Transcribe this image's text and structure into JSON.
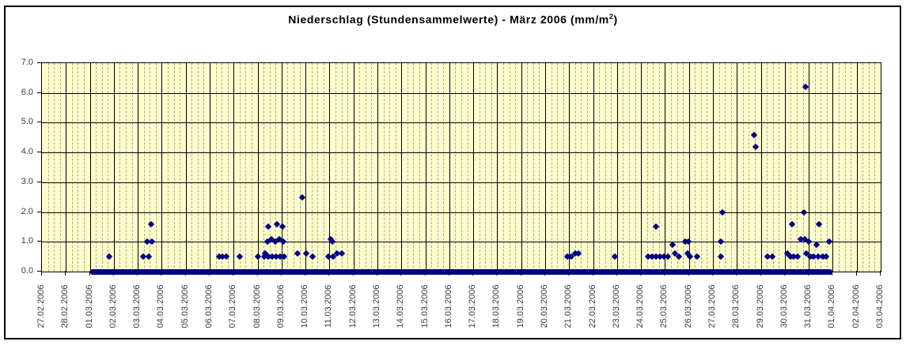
{
  "title": {
    "main": "Niederschlag (Stundensammelwerte) - März 2006 (mm/m",
    "sup": "2",
    "close": ")"
  },
  "colors": {
    "plot_background": "#FFFFCC",
    "marker": "#000080",
    "zero_baseline": "#000080",
    "major_gridline": "#000000",
    "minor_gridline": "#A6A6A6",
    "axis_text": "#3D3D3D",
    "frame": "#000000"
  },
  "chart_data": {
    "type": "scatter",
    "title": "Niederschlag (Stundensammelwerte) - März 2006 (mm/m²)",
    "xlabel": "",
    "ylabel": "",
    "legend": "none",
    "grid": "major solid lines per day and per 1.0 mm; minor dashed vertical lines every 6 hours",
    "y_axis": {
      "min": 0,
      "max": 7,
      "tick_labels": [
        "0.0",
        "1.0",
        "2.0",
        "3.0",
        "4.0",
        "5.0",
        "6.0",
        "7.0"
      ]
    },
    "x_axis": {
      "days_span": 35,
      "minor_divisions_per_day": 4,
      "tick_labels": [
        "27.02.2006",
        "28.02.2006",
        "01.03.2006",
        "02.03.2006",
        "03.03.2006",
        "04.03.2006",
        "05.03.2006",
        "06.03.2006",
        "07.03.2006",
        "08.03.2006",
        "09.03.2006",
        "10.03.2006",
        "11.03.2006",
        "12.03.2006",
        "13.03.2006",
        "14.03.2006",
        "15.03.2006",
        "16.03.2006",
        "17.03.2006",
        "18.03.2006",
        "19.03.2006",
        "20.03.2006",
        "21.03.2006",
        "22.03.2006",
        "23.03.2006",
        "24.03.2006",
        "25.03.2006",
        "26.03.2006",
        "27.03.2006",
        "28.03.2006",
        "29.03.2006",
        "30.03.2006",
        "31.03.2006",
        "01.04.2006",
        "02.04.2006",
        "03.04.2006"
      ]
    },
    "series": [
      {
        "marker": "diamond",
        "color": "#000080",
        "x_unit": "days after 27.02.2006 00:00",
        "y_unit": "mm/m²",
        "points": [
          [
            2.81,
            0.5
          ],
          [
            4.23,
            0.5
          ],
          [
            4.4,
            1.0
          ],
          [
            4.46,
            0.5
          ],
          [
            4.57,
            1.6
          ],
          [
            4.6,
            1.0
          ],
          [
            7.39,
            0.5
          ],
          [
            7.53,
            0.5
          ],
          [
            7.68,
            0.5
          ],
          [
            8.25,
            0.5
          ],
          [
            9.02,
            0.5
          ],
          [
            9.28,
            0.5
          ],
          [
            9.32,
            0.6
          ],
          [
            9.41,
            1.0
          ],
          [
            9.45,
            1.5
          ],
          [
            9.45,
            0.5
          ],
          [
            9.57,
            1.1
          ],
          [
            9.61,
            0.5
          ],
          [
            9.74,
            1.0
          ],
          [
            9.78,
            0.5
          ],
          [
            9.81,
            1.6
          ],
          [
            9.9,
            1.1
          ],
          [
            9.94,
            0.5
          ],
          [
            10.04,
            1.5
          ],
          [
            10.06,
            1.0
          ],
          [
            10.11,
            0.5
          ],
          [
            10.67,
            0.6
          ],
          [
            10.86,
            2.5
          ],
          [
            11.03,
            0.6
          ],
          [
            11.3,
            0.5
          ],
          [
            11.94,
            0.5
          ],
          [
            12.06,
            1.1
          ],
          [
            12.12,
            1.0
          ],
          [
            12.15,
            0.5
          ],
          [
            12.32,
            0.6
          ],
          [
            12.52,
            0.6
          ],
          [
            21.92,
            0.5
          ],
          [
            22.09,
            0.5
          ],
          [
            22.25,
            0.6
          ],
          [
            22.39,
            0.6
          ],
          [
            23.9,
            0.5
          ],
          [
            25.28,
            0.5
          ],
          [
            25.45,
            0.5
          ],
          [
            25.61,
            0.5
          ],
          [
            25.63,
            1.5
          ],
          [
            25.78,
            0.5
          ],
          [
            25.94,
            0.5
          ],
          [
            26.11,
            0.5
          ],
          [
            26.32,
            0.9
          ],
          [
            26.41,
            0.6
          ],
          [
            26.58,
            0.5
          ],
          [
            26.84,
            1.0
          ],
          [
            26.94,
            0.6
          ],
          [
            26.97,
            1.0
          ],
          [
            27.04,
            0.5
          ],
          [
            27.33,
            0.5
          ],
          [
            28.32,
            0.5
          ],
          [
            28.32,
            1.0
          ],
          [
            28.38,
            2.0
          ],
          [
            29.73,
            4.6
          ],
          [
            29.79,
            4.2
          ],
          [
            30.27,
            0.5
          ],
          [
            30.47,
            0.5
          ],
          [
            31.1,
            0.6
          ],
          [
            31.23,
            0.5
          ],
          [
            31.3,
            1.6
          ],
          [
            31.36,
            0.5
          ],
          [
            31.53,
            0.5
          ],
          [
            31.66,
            1.1
          ],
          [
            31.79,
            2.0
          ],
          [
            31.82,
            1.1
          ],
          [
            31.87,
            6.2
          ],
          [
            31.89,
            0.6
          ],
          [
            31.99,
            1.0
          ],
          [
            32.05,
            0.5
          ],
          [
            32.19,
            0.5
          ],
          [
            32.34,
            0.9
          ],
          [
            32.38,
            0.5
          ],
          [
            32.42,
            1.6
          ],
          [
            32.58,
            0.5
          ],
          [
            32.71,
            0.5
          ],
          [
            32.86,
            1.0
          ]
        ]
      }
    ],
    "zero_baseline": {
      "value": 0.0,
      "t_start": 2,
      "t_end": 33,
      "from_label": "01.03.2006",
      "to_label": "01.04.2006"
    }
  }
}
